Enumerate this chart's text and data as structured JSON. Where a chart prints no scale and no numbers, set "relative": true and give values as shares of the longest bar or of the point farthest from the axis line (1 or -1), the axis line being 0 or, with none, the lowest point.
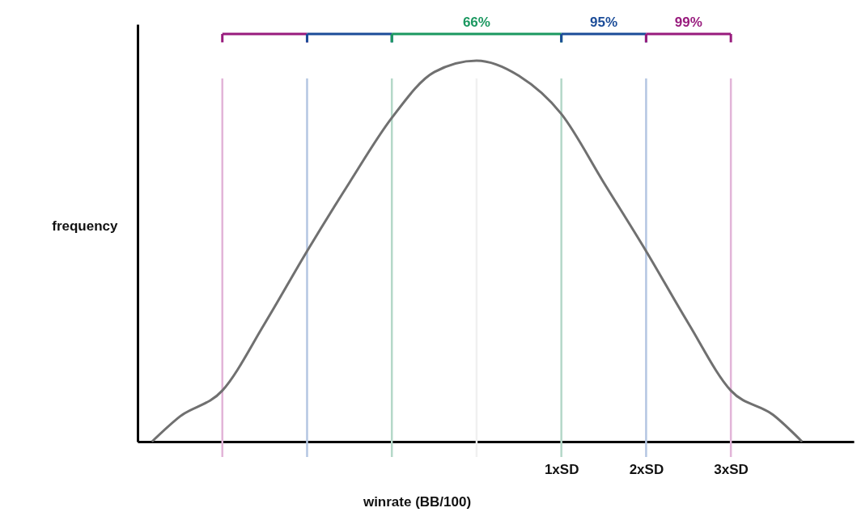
{
  "chart_data": {
    "type": "line",
    "relative": true,
    "xlabel": "winrate (BB/100)",
    "ylabel": "frequency",
    "x": [
      -3.83,
      -3.5,
      -3,
      -2.5,
      -2,
      -1.5,
      -1,
      -0.5,
      0,
      0.5,
      1,
      1.5,
      2,
      2.5,
      3,
      3.5,
      3.84
    ],
    "series": [
      {
        "color": "#707070",
        "values": [
          0,
          0.066,
          0.134,
          0.31,
          0.5,
          0.68,
          0.85,
          0.97,
          1,
          0.96,
          0.86,
          0.68,
          0.5,
          0.31,
          0.134,
          0.07,
          0
        ]
      }
    ],
    "xlim": [
      -4,
      4.45
    ],
    "xticks": [
      {
        "value": 1,
        "label": "1xSD"
      },
      {
        "value": 2,
        "label": "2xSD"
      },
      {
        "value": 3,
        "label": "3xSD"
      }
    ],
    "ref_lines": [
      {
        "axis": "x",
        "value": -3,
        "color": "#e2b4d8"
      },
      {
        "axis": "x",
        "value": -2,
        "color": "#b4c6e2"
      },
      {
        "axis": "x",
        "value": -1,
        "color": "#b4d8c8"
      },
      {
        "axis": "x",
        "value": 0,
        "color": "#f0f0f0"
      },
      {
        "axis": "x",
        "value": 1,
        "color": "#b4d8c8"
      },
      {
        "axis": "x",
        "value": 2,
        "color": "#b4c6e2"
      },
      {
        "axis": "x",
        "value": 3,
        "color": "#e2b4d8"
      }
    ],
    "annotations": [
      "66%",
      "95%",
      "99%"
    ],
    "grid": false,
    "line_style": "solid",
    "marker": "none"
  }
}
